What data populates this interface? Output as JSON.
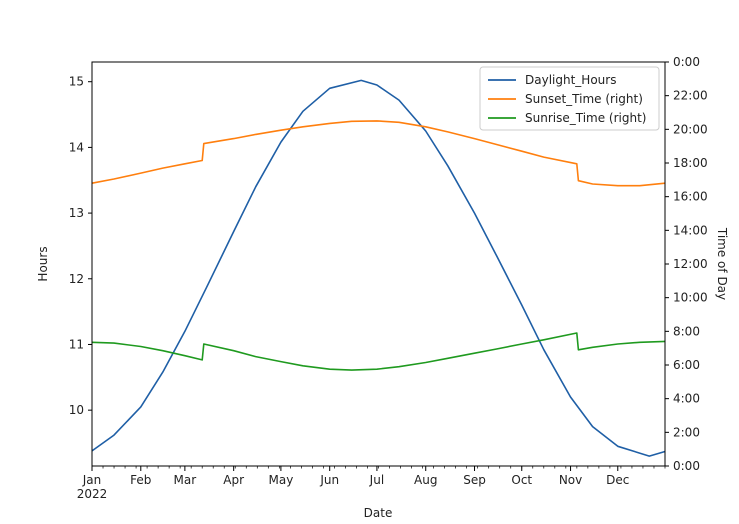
{
  "chart_data": {
    "type": "line",
    "xlabel": "Date",
    "ylabel": "Hours",
    "y2label": "Time of Day",
    "year": 2022,
    "x_ticks": [
      "Jan",
      "Feb",
      "Mar",
      "Apr",
      "May",
      "Jun",
      "Jul",
      "Aug",
      "Sep",
      "Oct",
      "Nov",
      "Dec"
    ],
    "x_year_label": "2022",
    "ylim": [
      9.15,
      15.3
    ],
    "y_ticks": [
      10,
      11,
      12,
      13,
      14,
      15
    ],
    "y2lim": [
      0,
      24
    ],
    "y2_ticks": [
      "0:00",
      "2:00",
      "4:00",
      "6:00",
      "8:00",
      "10:00",
      "12:00",
      "14:00",
      "16:00",
      "18:00",
      "20:00",
      "22:00",
      "0:00"
    ],
    "dst_dates": [
      "2022-03-13",
      "2022-11-06"
    ],
    "legend_position": "top-right",
    "series": [
      {
        "name": "Daylight_Hours",
        "axis": "left",
        "color": "#1f5fa6",
        "points": [
          [
            "2022-01-01",
            9.38
          ],
          [
            "2022-01-15",
            9.62
          ],
          [
            "2022-02-01",
            10.05
          ],
          [
            "2022-02-15",
            10.58
          ],
          [
            "2022-03-01",
            11.2
          ],
          [
            "2022-03-15",
            11.88
          ],
          [
            "2022-04-01",
            12.72
          ],
          [
            "2022-04-15",
            13.4
          ],
          [
            "2022-05-01",
            14.08
          ],
          [
            "2022-05-15",
            14.55
          ],
          [
            "2022-06-01",
            14.9
          ],
          [
            "2022-06-21",
            15.02
          ],
          [
            "2022-07-01",
            14.95
          ],
          [
            "2022-07-15",
            14.72
          ],
          [
            "2022-08-01",
            14.25
          ],
          [
            "2022-08-15",
            13.72
          ],
          [
            "2022-09-01",
            13.0
          ],
          [
            "2022-09-15",
            12.35
          ],
          [
            "2022-10-01",
            11.6
          ],
          [
            "2022-10-15",
            10.92
          ],
          [
            "2022-11-01",
            10.2
          ],
          [
            "2022-11-15",
            9.75
          ],
          [
            "2022-12-01",
            9.45
          ],
          [
            "2022-12-21",
            9.3
          ],
          [
            "2022-12-31",
            9.37
          ]
        ]
      },
      {
        "name": "Sunset_Time (right)",
        "axis": "right",
        "color": "#ff7f0e",
        "points": [
          [
            "2022-01-01",
            16.8
          ],
          [
            "2022-01-15",
            17.05
          ],
          [
            "2022-02-01",
            17.4
          ],
          [
            "2022-02-15",
            17.7
          ],
          [
            "2022-03-01",
            17.95
          ],
          [
            "2022-03-12",
            18.15
          ],
          [
            "2022-03-13",
            19.15
          ],
          [
            "2022-04-01",
            19.45
          ],
          [
            "2022-04-15",
            19.7
          ],
          [
            "2022-05-01",
            19.95
          ],
          [
            "2022-05-15",
            20.15
          ],
          [
            "2022-06-01",
            20.35
          ],
          [
            "2022-06-15",
            20.48
          ],
          [
            "2022-07-01",
            20.5
          ],
          [
            "2022-07-15",
            20.42
          ],
          [
            "2022-08-01",
            20.15
          ],
          [
            "2022-08-15",
            19.85
          ],
          [
            "2022-09-01",
            19.45
          ],
          [
            "2022-09-15",
            19.1
          ],
          [
            "2022-10-01",
            18.7
          ],
          [
            "2022-10-15",
            18.35
          ],
          [
            "2022-11-05",
            17.95
          ],
          [
            "2022-11-06",
            16.95
          ],
          [
            "2022-11-15",
            16.75
          ],
          [
            "2022-12-01",
            16.65
          ],
          [
            "2022-12-15",
            16.65
          ],
          [
            "2022-12-31",
            16.8
          ]
        ]
      },
      {
        "name": "Sunrise_Time (right)",
        "axis": "right",
        "color": "#1f9a1f",
        "points": [
          [
            "2022-01-01",
            7.35
          ],
          [
            "2022-01-15",
            7.3
          ],
          [
            "2022-02-01",
            7.1
          ],
          [
            "2022-02-15",
            6.85
          ],
          [
            "2022-03-01",
            6.55
          ],
          [
            "2022-03-12",
            6.3
          ],
          [
            "2022-03-13",
            7.25
          ],
          [
            "2022-04-01",
            6.85
          ],
          [
            "2022-04-15",
            6.5
          ],
          [
            "2022-05-01",
            6.2
          ],
          [
            "2022-05-15",
            5.95
          ],
          [
            "2022-06-01",
            5.75
          ],
          [
            "2022-06-15",
            5.7
          ],
          [
            "2022-07-01",
            5.75
          ],
          [
            "2022-07-15",
            5.9
          ],
          [
            "2022-08-01",
            6.15
          ],
          [
            "2022-08-15",
            6.4
          ],
          [
            "2022-09-01",
            6.7
          ],
          [
            "2022-09-15",
            6.95
          ],
          [
            "2022-10-01",
            7.25
          ],
          [
            "2022-10-15",
            7.5
          ],
          [
            "2022-11-05",
            7.9
          ],
          [
            "2022-11-06",
            6.9
          ],
          [
            "2022-11-15",
            7.05
          ],
          [
            "2022-12-01",
            7.25
          ],
          [
            "2022-12-15",
            7.35
          ],
          [
            "2022-12-31",
            7.4
          ]
        ]
      }
    ]
  }
}
